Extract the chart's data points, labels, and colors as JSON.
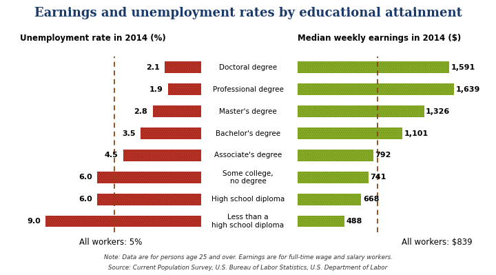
{
  "title": "Earnings and unemployment rates by educational attainment",
  "left_subtitle": "Unemployment rate in 2014 (%)",
  "right_subtitle": "Median weekly earnings in 2014 ($)",
  "left_footer": "All workers: 5%",
  "right_footer": "All workers: $839",
  "note_line1": "Note: Data are for persons age 25 and over. Earnings are for full-time wage and salary workers.",
  "note_line2": "Source: Current Population Survey, U.S. Bureau of Labor Statistics, U.S. Department of Labor",
  "categories": [
    "Less than a\nhigh school diploma",
    "High school diploma",
    "Some college,\nno degree",
    "Associate's degree",
    "Bachelor's degree",
    "Master's degree",
    "Professional degree",
    "Doctoral degree"
  ],
  "unemployment": [
    9.0,
    6.0,
    6.0,
    4.5,
    3.5,
    2.8,
    1.9,
    2.1
  ],
  "earnings": [
    488,
    668,
    741,
    792,
    1101,
    1326,
    1639,
    1591
  ],
  "unemp_max": 10.5,
  "earn_max": 1950,
  "unemp_ref": 5.0,
  "earn_ref": 839,
  "bar_color_left": "#c0392b",
  "bar_color_right": "#8db32a",
  "ref_line_color": "#8B4513",
  "title_color": "#1a3a6b",
  "subtitle_color": "#000000",
  "bg_color": "#ffffff"
}
